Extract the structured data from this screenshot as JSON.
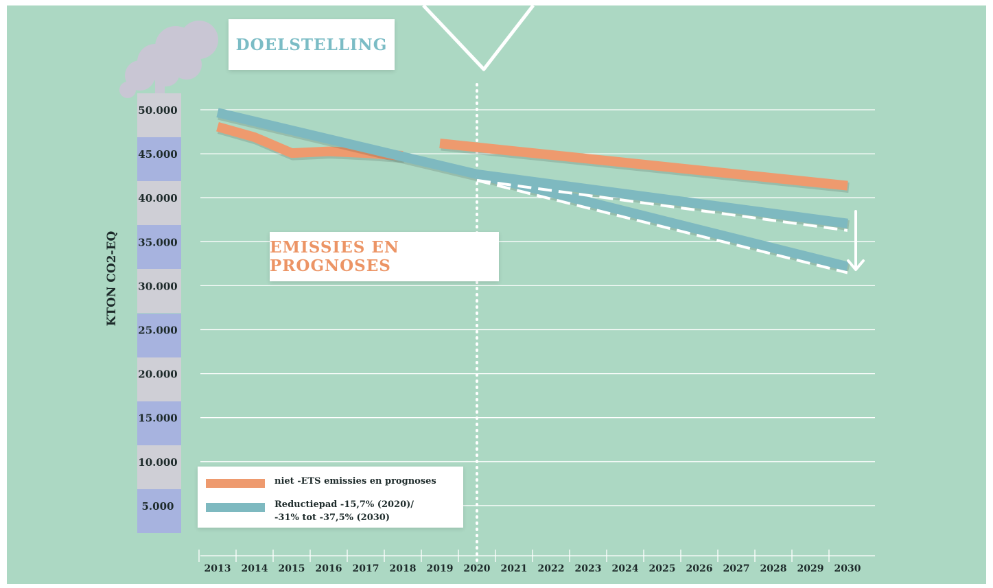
{
  "colors": {
    "background": "#acd8c3",
    "orange": "#ee9a6e",
    "teal": "#7eb9c0",
    "dashed": "#ffffff",
    "gridline": "#ffffff",
    "text": "#1d2a2a"
  },
  "labels": {
    "doelstelling": "DOELSTELLING",
    "emissies": "EMISSIES EN PROGNOSES"
  },
  "chart_data": {
    "type": "line",
    "ylabel": "KTON CO2-EQ",
    "xlabel": "",
    "x": [
      2013,
      2014,
      2015,
      2016,
      2017,
      2018,
      2019,
      2020,
      2021,
      2022,
      2023,
      2024,
      2025,
      2026,
      2027,
      2028,
      2029,
      2030
    ],
    "xticklabels": [
      "2013",
      "2014",
      "2015",
      "2016",
      "2017",
      "2018",
      "2019",
      "2020",
      "2021",
      "2022",
      "2023",
      "2024",
      "2025",
      "2026",
      "2027",
      "2028",
      "2029",
      "2030"
    ],
    "yticks": [
      5000,
      10000,
      15000,
      20000,
      25000,
      30000,
      35000,
      40000,
      45000,
      50000
    ],
    "yticklabels": [
      "5.000",
      "10.000",
      "15.000",
      "20.000",
      "25.000",
      "30.000",
      "35.000",
      "40.000",
      "45.000",
      "50.000"
    ],
    "ylim": [
      0,
      52000
    ],
    "grid": true,
    "vertical_marker_x": 2020,
    "series": [
      {
        "name": "niet -ETS emissies en prognoses",
        "color": "#ee9a6e",
        "segments": [
          {
            "x": [
              2013,
              2014,
              2015,
              2016,
              2017,
              2018
            ],
            "y": [
              48700,
              47500,
              45700,
              45900,
              45700,
              45400
            ]
          },
          {
            "x": [
              2019,
              2030
            ],
            "y": [
              46800,
              42000
            ]
          }
        ]
      },
      {
        "name": "Reductiepad -15,7% (2020)/ -31% tot -37,5% (2030)",
        "color": "#7eb9c0",
        "segments": [
          {
            "x": [
              2013,
              2020
            ],
            "y": [
              50300,
              43300
            ]
          },
          {
            "x": [
              2020,
              2030
            ],
            "y": [
              43300,
              37700
            ]
          },
          {
            "x": [
              2020,
              2030
            ],
            "y": [
              43300,
              32800
            ]
          }
        ]
      }
    ],
    "dashed_targets": [
      {
        "x": [
          2020,
          2030
        ],
        "y": [
          42600,
          36900
        ]
      },
      {
        "x": [
          2020,
          2030
        ],
        "y": [
          42600,
          32100
        ]
      }
    ],
    "legend": {
      "position": "bottom-left",
      "entries": [
        {
          "line1": "niet -ETS emissies en prognoses",
          "line2": ""
        },
        {
          "line1": "Reductiepad -15,7% (2020)/",
          "line2": "-31% tot -37,5% (2030)"
        }
      ]
    }
  }
}
